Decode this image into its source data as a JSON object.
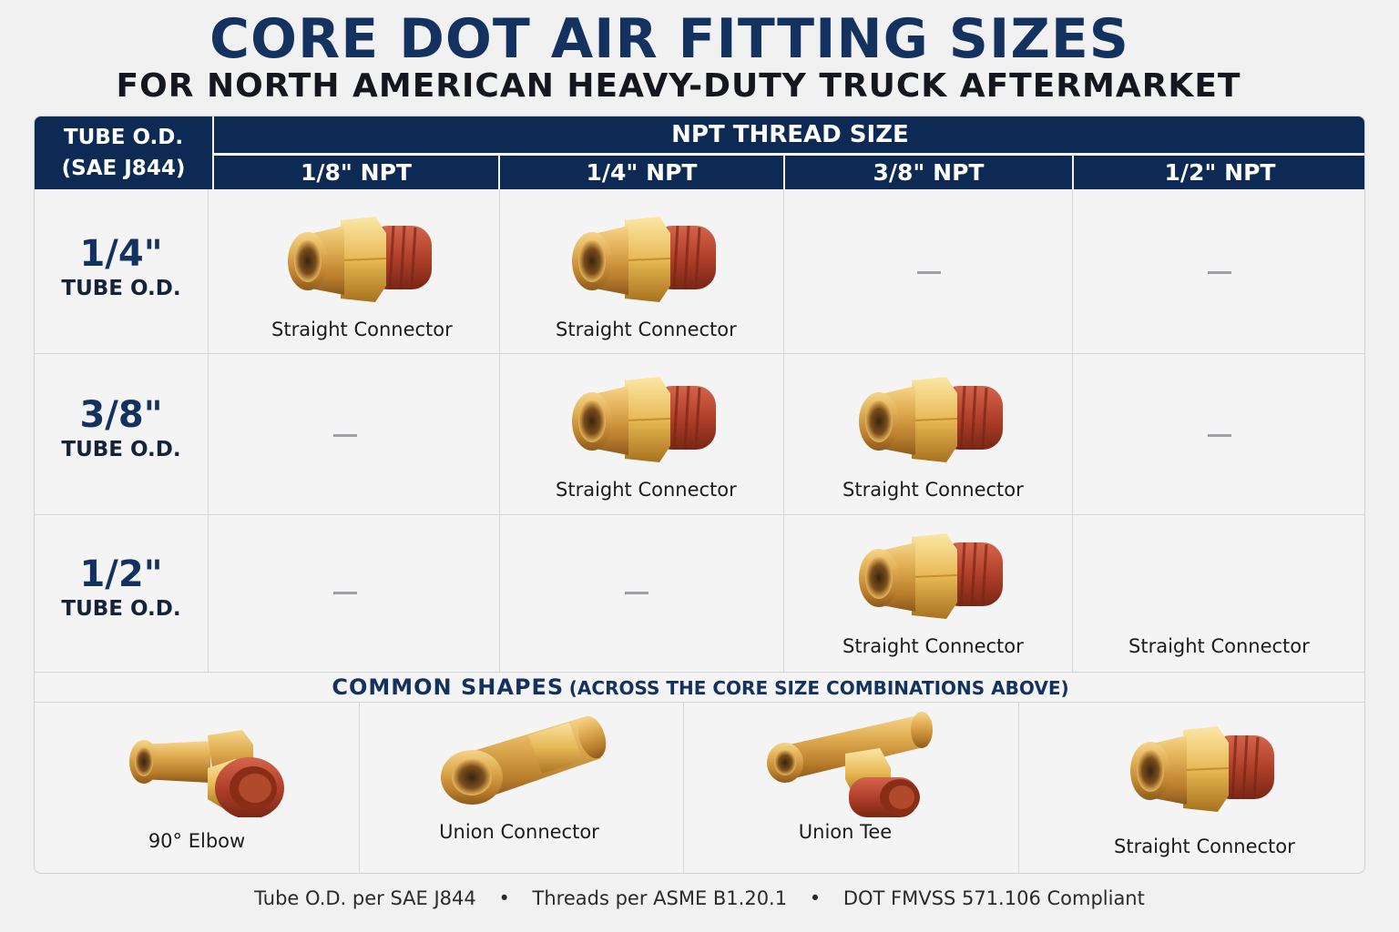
{
  "header": {
    "title": "CORE DOT AIR FITTING SIZES",
    "subtitle": "FOR NORTH AMERICAN HEAVY-DUTY TRUCK AFTERMARKET"
  },
  "table": {
    "tube_header_line1": "TUBE O.D.",
    "tube_header_line2": "(SAE J844)",
    "npt_header": "NPT THREAD SIZE",
    "columns": [
      "1/8\" NPT",
      "1/4\" NPT",
      "3/8\" NPT",
      "1/2\" NPT"
    ],
    "rows": [
      {
        "size": "1/4\"",
        "unit": "TUBE O.D.",
        "cells": [
          "Straight Connector",
          "Straight Connector",
          "—",
          "—"
        ]
      },
      {
        "size": "3/8\"",
        "unit": "TUBE O.D.",
        "cells": [
          "—",
          "Straight Connector",
          "Straight Connector",
          "—"
        ]
      },
      {
        "size": "1/2\"",
        "unit": "TUBE O.D.",
        "cells": [
          "—",
          "—",
          "Straight Connector",
          "Straight Connector"
        ]
      }
    ]
  },
  "shapes": {
    "title": "COMMON SHAPES",
    "subtitle": "(ACROSS THE CORE SIZE COMBINATIONS ABOVE)",
    "items": [
      {
        "label": "90° Elbow",
        "icon": "elbow-fitting-icon"
      },
      {
        "label": "Union Connector",
        "icon": "union-connector-icon"
      },
      {
        "label": "Union Tee",
        "icon": "union-tee-icon"
      },
      {
        "label": "Straight Connector",
        "icon": "straight-connector-icon"
      }
    ]
  },
  "footer": {
    "items": [
      "Tube O.D. per SAE J844",
      "Threads per ASME B1.20.1",
      "DOT FMVSS 571.106 Compliant"
    ],
    "separator": "•"
  },
  "colors": {
    "navy": "#0d2a55",
    "brass": "#d9a441",
    "thread_red": "#b5452a",
    "background": "#f1f1f1"
  }
}
